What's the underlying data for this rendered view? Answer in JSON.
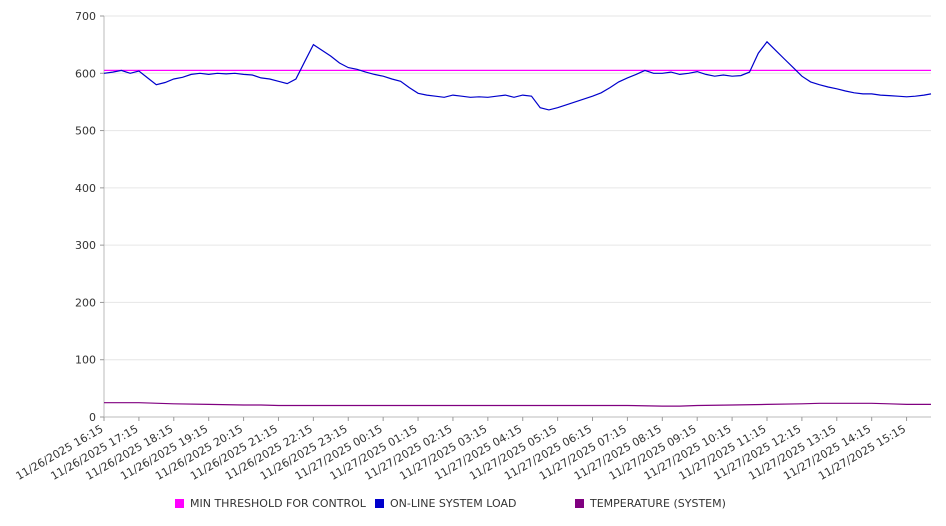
{
  "chart_data": {
    "type": "line",
    "title": "",
    "xlabel": "",
    "ylabel": "",
    "ylim": [
      0,
      700
    ],
    "y_ticks": [
      0,
      100,
      200,
      300,
      400,
      500,
      600,
      700
    ],
    "x_tick_labels": [
      "11/26/2025 16:15",
      "11/26/2025 17:15",
      "11/26/2025 18:15",
      "11/26/2025 19:15",
      "11/26/2025 20:15",
      "11/26/2025 21:15",
      "11/26/2025 22:15",
      "11/26/2025 23:15",
      "11/27/2025 00:15",
      "11/27/2025 01:15",
      "11/27/2025 02:15",
      "11/27/2025 03:15",
      "11/27/2025 04:15",
      "11/27/2025 05:15",
      "11/27/2025 06:15",
      "11/27/2025 07:15",
      "11/27/2025 08:15",
      "11/27/2025 09:15",
      "11/27/2025 10:15",
      "11/27/2025 11:15",
      "11/27/2025 12:15",
      "11/27/2025 13:15",
      "11/27/2025 14:15",
      "11/27/2025 15:15"
    ],
    "x_range_hours": [
      0,
      23.7
    ],
    "grid": true,
    "legend_position": "bottom",
    "series": [
      {
        "name": "MIN THRESHOLD FOR CONTROL",
        "color": "#ff00ff",
        "x": [
          0,
          23.7
        ],
        "values": [
          605,
          605
        ]
      },
      {
        "name": "ON-LINE SYSTEM LOAD",
        "color": "#0000cc",
        "x": [
          0,
          0.25,
          0.5,
          0.75,
          1.0,
          1.25,
          1.5,
          1.75,
          2.0,
          2.25,
          2.5,
          2.75,
          3.0,
          3.25,
          3.5,
          3.75,
          4.0,
          4.25,
          4.5,
          4.75,
          5.0,
          5.25,
          5.5,
          5.75,
          6.0,
          6.25,
          6.5,
          6.75,
          7.0,
          7.25,
          7.5,
          7.75,
          8.0,
          8.25,
          8.5,
          8.75,
          9.0,
          9.25,
          9.5,
          9.75,
          10.0,
          10.25,
          10.5,
          10.75,
          11.0,
          11.25,
          11.5,
          11.75,
          12.0,
          12.25,
          12.5,
          12.75,
          13.0,
          13.25,
          13.5,
          13.75,
          14.0,
          14.25,
          14.5,
          14.75,
          15.0,
          15.25,
          15.5,
          15.75,
          16.0,
          16.25,
          16.5,
          16.75,
          17.0,
          17.25,
          17.5,
          17.75,
          18.0,
          18.25,
          18.5,
          18.75,
          19.0,
          19.25,
          19.5,
          19.75,
          20.0,
          20.25,
          20.5,
          20.75,
          21.0,
          21.25,
          21.5,
          21.75,
          22.0,
          22.25,
          22.5,
          22.75,
          23.0,
          23.25,
          23.5,
          23.7
        ],
        "values": [
          600,
          602,
          605,
          600,
          604,
          592,
          580,
          584,
          590,
          593,
          598,
          600,
          598,
          600,
          599,
          600,
          598,
          597,
          592,
          590,
          586,
          582,
          590,
          620,
          650,
          640,
          630,
          618,
          610,
          607,
          602,
          598,
          595,
          590,
          586,
          575,
          565,
          562,
          560,
          558,
          562,
          560,
          558,
          559,
          558,
          560,
          562,
          558,
          562,
          560,
          540,
          536,
          540,
          545,
          550,
          555,
          560,
          566,
          575,
          585,
          592,
          598,
          605,
          600,
          600,
          602,
          598,
          600,
          603,
          598,
          595,
          597,
          595,
          596,
          602,
          635,
          655,
          640,
          625,
          610,
          595,
          585,
          580,
          576,
          573,
          569,
          566,
          564,
          564,
          562,
          561,
          560,
          559,
          560,
          562,
          564
        ]
      },
      {
        "name": "TEMPERATURE (SYSTEM)",
        "color": "#800080",
        "x": [
          0,
          1,
          2,
          3,
          4,
          4.5,
          5,
          6,
          7,
          8,
          9,
          10,
          11,
          12,
          13,
          14,
          15,
          16,
          16.5,
          17,
          18,
          19,
          20,
          20.5,
          21,
          22,
          22.5,
          23,
          23.7
        ],
        "values": [
          25,
          25,
          23,
          22,
          21,
          21,
          20,
          20,
          20,
          20,
          20,
          20,
          20,
          20,
          20,
          20,
          20,
          19,
          19,
          20,
          21,
          22,
          23,
          24,
          24,
          24,
          23,
          22,
          22
        ]
      }
    ]
  }
}
